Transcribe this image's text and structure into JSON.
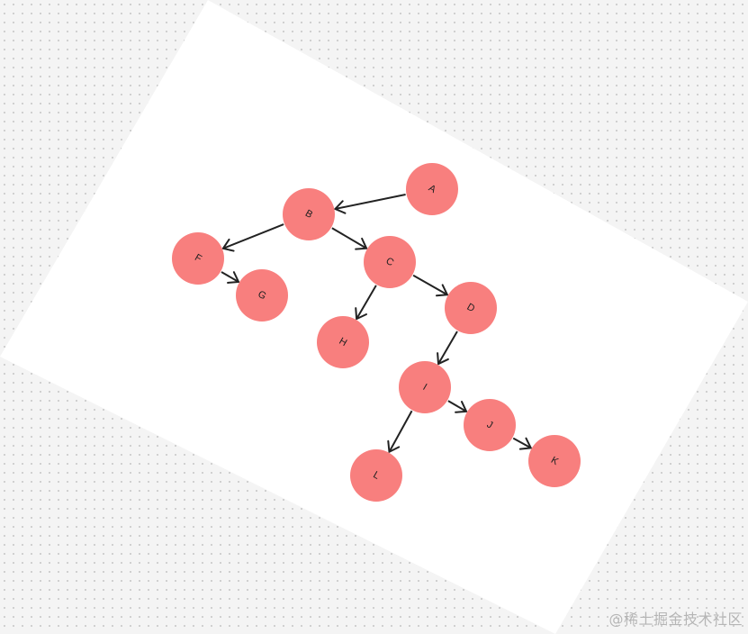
{
  "graph": {
    "node_color": "#f87f7e",
    "edge_color": "#222222",
    "label_color": "#1f1f1f",
    "nodes": [
      {
        "id": "A",
        "label": "A"
      },
      {
        "id": "B",
        "label": "B"
      },
      {
        "id": "C",
        "label": "C"
      },
      {
        "id": "D",
        "label": "D"
      },
      {
        "id": "F",
        "label": "F"
      },
      {
        "id": "G",
        "label": "G"
      },
      {
        "id": "H",
        "label": "H"
      },
      {
        "id": "I",
        "label": "I"
      },
      {
        "id": "J",
        "label": "J"
      },
      {
        "id": "K",
        "label": "K"
      },
      {
        "id": "L",
        "label": "L"
      }
    ],
    "edges": [
      {
        "from": "A",
        "to": "B"
      },
      {
        "from": "B",
        "to": "F"
      },
      {
        "from": "B",
        "to": "C"
      },
      {
        "from": "F",
        "to": "G"
      },
      {
        "from": "C",
        "to": "H"
      },
      {
        "from": "C",
        "to": "D"
      },
      {
        "from": "D",
        "to": "I"
      },
      {
        "from": "I",
        "to": "J"
      },
      {
        "from": "I",
        "to": "L"
      },
      {
        "from": "J",
        "to": "K"
      }
    ]
  },
  "watermark": "@稀土掘金技术社区"
}
